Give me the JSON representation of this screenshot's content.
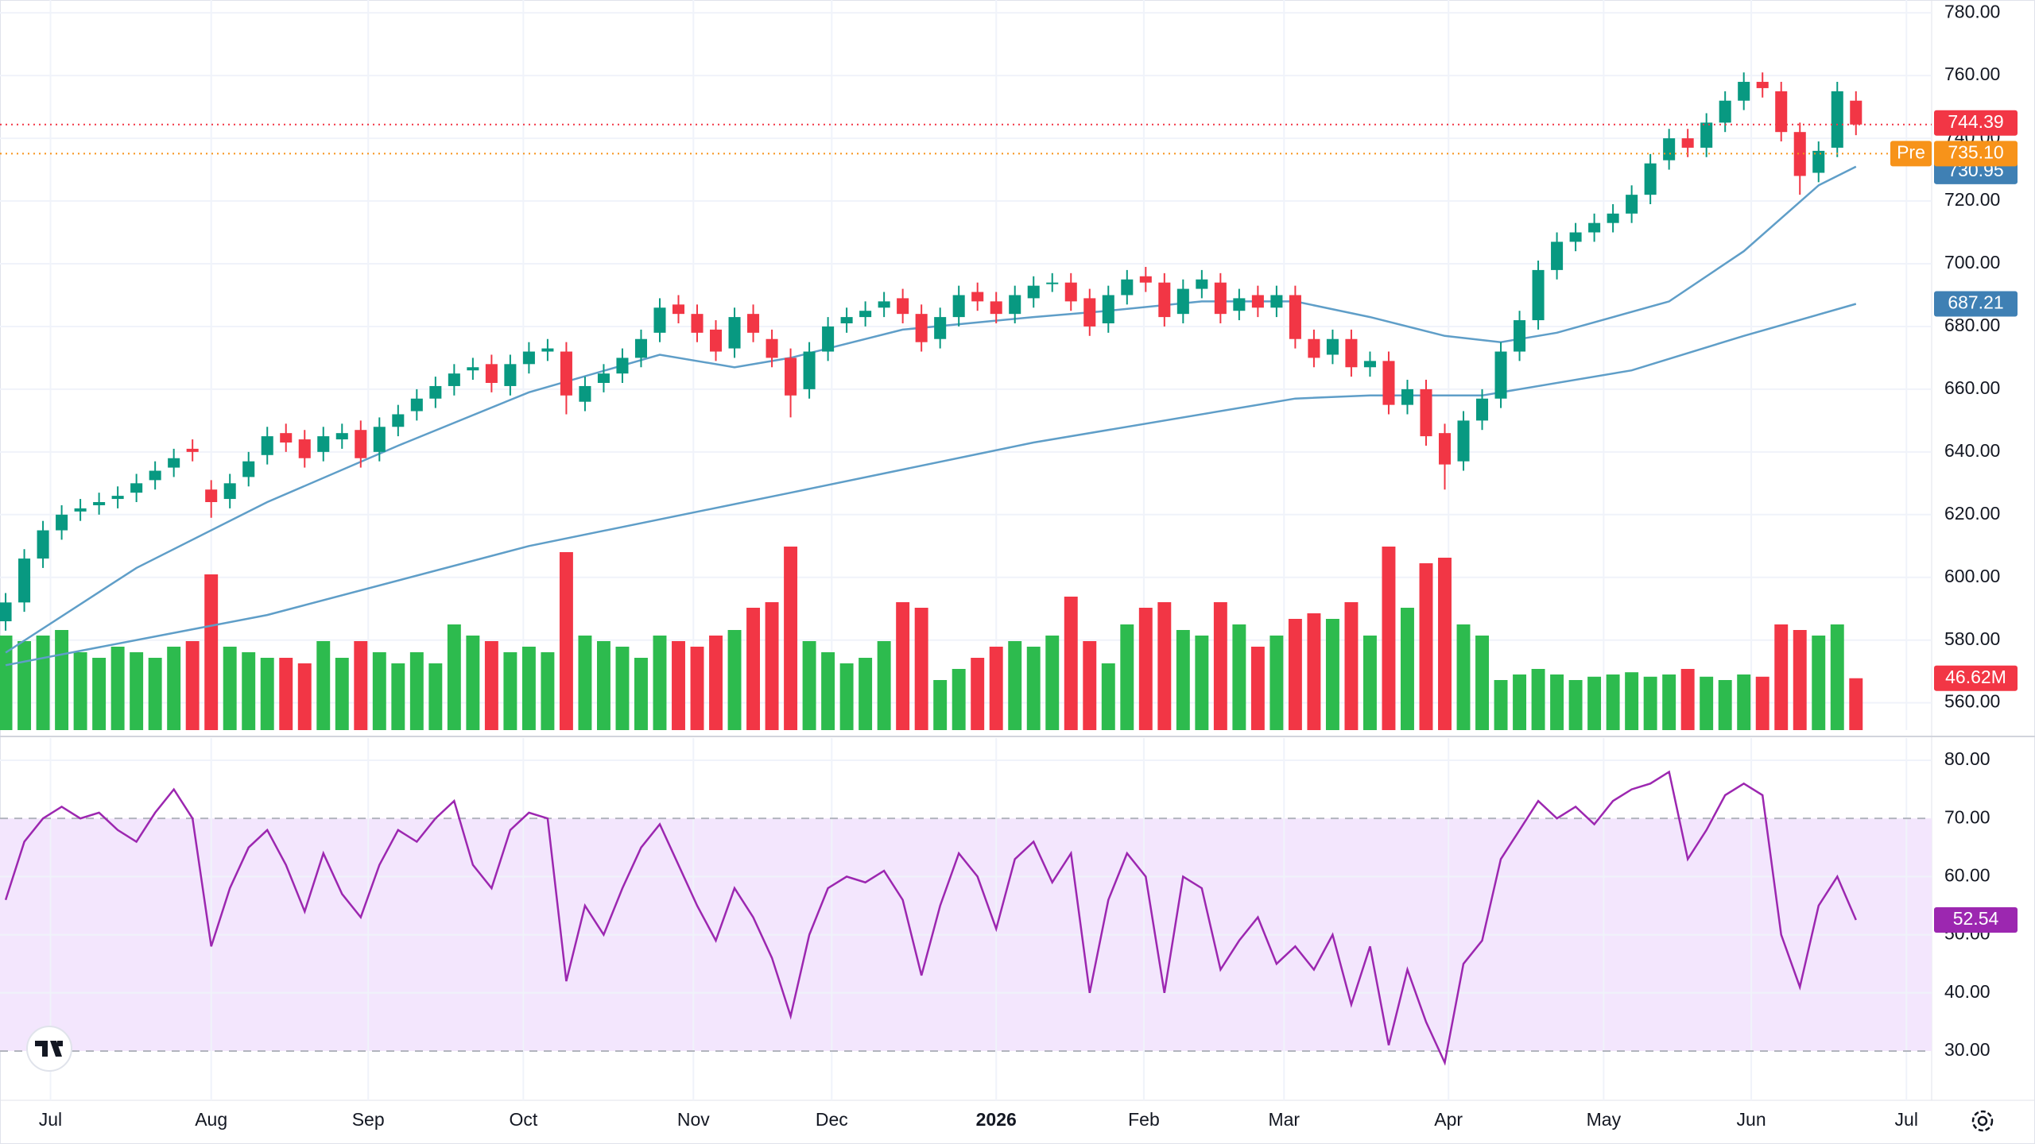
{
  "chart_data": {
    "type": "candlestick",
    "xlim": [
      -0.3,
      103.05
    ],
    "xticks": [
      {
        "value": 2.4,
        "label": "Jul"
      },
      {
        "value": 11,
        "label": "Aug"
      },
      {
        "value": 19.4,
        "label": "Sep"
      },
      {
        "value": 27.7,
        "label": "Oct"
      },
      {
        "value": 36.8,
        "label": "Nov"
      },
      {
        "value": 44.2,
        "label": "Dec"
      },
      {
        "value": 53,
        "label": "2026",
        "bold": true
      },
      {
        "value": 60.9,
        "label": "Feb"
      },
      {
        "value": 68.4,
        "label": "Mar"
      },
      {
        "value": 77.2,
        "label": "Apr"
      },
      {
        "value": 85.5,
        "label": "May"
      },
      {
        "value": 93.4,
        "label": "Jun"
      },
      {
        "value": 101.7,
        "label": "Jul"
      }
    ],
    "ylim": [
      551.3,
      784.1
    ],
    "yticks": [
      {
        "value": 560,
        "label": "560.00"
      },
      {
        "value": 580,
        "label": "580.00"
      },
      {
        "value": 600,
        "label": "600.00"
      },
      {
        "value": 620,
        "label": "620.00"
      },
      {
        "value": 640,
        "label": "640.00"
      },
      {
        "value": 660,
        "label": "660.00"
      },
      {
        "value": 680,
        "label": "680.00"
      },
      {
        "value": 700,
        "label": "700.00"
      },
      {
        "value": 720,
        "label": "720.00"
      },
      {
        "value": 740,
        "label": "740.00"
      },
      {
        "value": 760,
        "label": "760.00"
      },
      {
        "value": 780,
        "label": "780.00"
      }
    ],
    "grid": true,
    "up_color": "#089981",
    "down_color": "#f23645",
    "open": [
      586,
      592,
      606,
      615,
      621,
      623,
      625,
      627,
      631,
      635,
      641,
      628,
      625,
      632,
      639,
      646,
      644,
      640,
      644,
      647,
      640,
      648,
      653,
      657,
      661,
      666,
      668,
      661,
      668,
      672,
      672,
      656,
      662,
      665,
      670,
      678,
      687,
      684,
      679,
      673,
      684,
      676,
      670,
      660,
      672,
      681,
      683,
      686,
      689,
      684,
      676,
      683,
      691,
      688,
      684,
      689,
      694,
      694,
      689,
      681,
      690,
      696,
      694,
      684,
      692,
      694,
      685,
      690,
      686,
      690,
      676,
      671,
      676,
      667,
      669,
      655,
      660,
      646,
      637,
      650,
      657,
      672,
      682,
      698,
      707,
      710,
      713,
      716,
      722,
      733,
      740,
      737,
      745,
      752,
      758,
      755,
      742,
      729,
      737,
      752
    ],
    "high": [
      595,
      609,
      618,
      623,
      625,
      627,
      629,
      633,
      637,
      641,
      644,
      631,
      633,
      640,
      648,
      649,
      647,
      648,
      649,
      650,
      651,
      655,
      660,
      664,
      668,
      670,
      671,
      671,
      675,
      676,
      675,
      664,
      668,
      673,
      679,
      689,
      690,
      687,
      682,
      686,
      687,
      679,
      673,
      675,
      683,
      686,
      688,
      691,
      692,
      687,
      686,
      693,
      694,
      691,
      693,
      696,
      697,
      697,
      692,
      693,
      698,
      699,
      697,
      695,
      698,
      697,
      692,
      693,
      693,
      693,
      679,
      679,
      679,
      672,
      672,
      663,
      663,
      649,
      653,
      660,
      675,
      685,
      701,
      710,
      713,
      716,
      719,
      725,
      735,
      743,
      743,
      748,
      755,
      761,
      761,
      758,
      745,
      739,
      758,
      755
    ],
    "low": [
      583,
      589,
      603,
      612,
      618,
      620,
      622,
      624,
      628,
      632,
      637,
      619,
      622,
      629,
      636,
      640,
      635,
      637,
      641,
      635,
      637,
      645,
      650,
      654,
      658,
      663,
      659,
      658,
      665,
      669,
      652,
      653,
      659,
      662,
      667,
      675,
      681,
      675,
      669,
      670,
      675,
      667,
      651,
      657,
      669,
      678,
      680,
      683,
      681,
      672,
      673,
      680,
      685,
      681,
      681,
      686,
      691,
      685,
      677,
      678,
      687,
      691,
      680,
      681,
      689,
      681,
      682,
      683,
      683,
      673,
      667,
      668,
      664,
      664,
      652,
      652,
      642,
      628,
      634,
      647,
      654,
      669,
      679,
      695,
      704,
      707,
      710,
      713,
      719,
      730,
      734,
      734,
      742,
      749,
      753,
      739,
      722,
      726,
      734,
      741
    ],
    "close": [
      592,
      606,
      615,
      620,
      622,
      624,
      626,
      630,
      634,
      638,
      640,
      624,
      630,
      637,
      645,
      643,
      638,
      645,
      646,
      638,
      648,
      652,
      657,
      661,
      665,
      667,
      662,
      668,
      672,
      673,
      658,
      661,
      665,
      670,
      676,
      686,
      684,
      678,
      672,
      683,
      678,
      670,
      658,
      672,
      680,
      683,
      685,
      688,
      684,
      675,
      683,
      690,
      688,
      684,
      690,
      693,
      694,
      688,
      680,
      690,
      695,
      694,
      683,
      692,
      695,
      684,
      689,
      686,
      690,
      676,
      670,
      676,
      667,
      669,
      655,
      660,
      645,
      636,
      650,
      657,
      672,
      682,
      698,
      707,
      710,
      713,
      716,
      722,
      732,
      740,
      737,
      745,
      752,
      758,
      756,
      742,
      728,
      736,
      755,
      744.39
    ],
    "premarket": {
      "name": "Pre",
      "value": 735.1,
      "value_label": "735.10",
      "color": "#f7931a"
    },
    "moving_averages": [
      {
        "color": "#5f9ec8",
        "label_color": "#3f80b4",
        "x": [
          0,
          7,
          14,
          21,
          28,
          35,
          39,
          42,
          48,
          55,
          59,
          64,
          69,
          73,
          77,
          80,
          83,
          89,
          93,
          97,
          99
        ],
        "values": [
          576,
          603,
          624,
          642,
          659,
          671,
          667,
          670,
          679,
          683,
          685,
          688,
          688,
          683,
          677,
          675,
          678,
          688,
          704,
          725,
          730.95
        ]
      },
      {
        "color": "#5f9ec8",
        "label_color": "#3f80b4",
        "x": [
          0,
          14,
          28,
          42,
          55,
          69,
          73,
          79,
          87,
          93,
          99
        ],
        "values": [
          572,
          588,
          610,
          627,
          643,
          657,
          658,
          658,
          666,
          677,
          687.21
        ]
      }
    ],
    "volume": {
      "ylim": [
        0,
        200
      ],
      "up_color": "#2dbb4e",
      "down_color": "#f23645",
      "last_label": "46.62M",
      "values": [
        85,
        80,
        85,
        90,
        70,
        65,
        75,
        70,
        65,
        75,
        80,
        140,
        75,
        70,
        65,
        65,
        60,
        80,
        65,
        80,
        70,
        60,
        70,
        60,
        95,
        85,
        80,
        70,
        75,
        70,
        160,
        85,
        80,
        75,
        65,
        85,
        80,
        75,
        85,
        90,
        110,
        115,
        165,
        80,
        70,
        60,
        65,
        80,
        115,
        110,
        45,
        55,
        65,
        75,
        80,
        75,
        85,
        120,
        80,
        60,
        95,
        110,
        115,
        90,
        85,
        115,
        95,
        75,
        85,
        100,
        105,
        100,
        115,
        85,
        165,
        110,
        150,
        155,
        95,
        85,
        45,
        50,
        55,
        50,
        45,
        48,
        50,
        52,
        48,
        50,
        55,
        48,
        45,
        50,
        48,
        95,
        90,
        85,
        95,
        46.62
      ]
    },
    "rsi": {
      "color": "#9c27b0",
      "ylim": [
        23.3,
        83.55
      ],
      "band": [
        30,
        70
      ],
      "band_color": "#f3e6fd",
      "yticks": [
        {
          "value": 30,
          "label": "30.00"
        },
        {
          "value": 40,
          "label": "40.00"
        },
        {
          "value": 50,
          "label": "50.00"
        },
        {
          "value": 60,
          "label": "60.00"
        },
        {
          "value": 70,
          "label": "70.00"
        },
        {
          "value": 80,
          "label": "80.00"
        }
      ],
      "values": [
        56,
        66,
        70,
        72,
        70,
        71,
        68,
        66,
        71,
        75,
        70,
        48,
        58,
        65,
        68,
        62,
        54,
        64,
        57,
        53,
        62,
        68,
        66,
        70,
        73,
        62,
        58,
        68,
        71,
        70,
        42,
        55,
        50,
        58,
        65,
        69,
        62,
        55,
        49,
        58,
        53,
        46,
        36,
        50,
        58,
        60,
        59,
        61,
        56,
        43,
        55,
        64,
        60,
        51,
        63,
        66,
        59,
        64,
        40,
        56,
        64,
        60,
        40,
        60,
        58,
        44,
        49,
        53,
        45,
        48,
        44,
        50,
        38,
        48,
        31,
        44,
        35,
        28,
        45,
        49,
        63,
        68,
        73,
        70,
        72,
        69,
        73,
        75,
        76,
        78,
        63,
        68,
        74,
        76,
        74,
        50,
        41,
        55,
        60,
        52.54
      ]
    }
  }
}
